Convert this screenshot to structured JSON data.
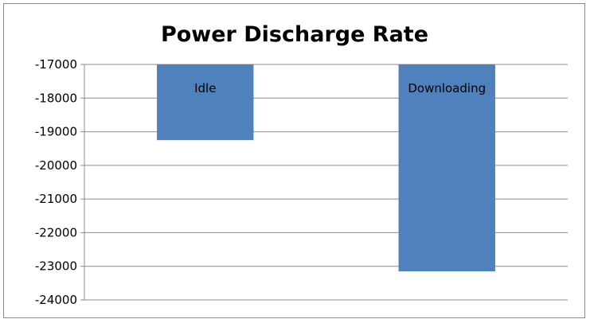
{
  "chart_data": {
    "type": "bar",
    "title": "Power Discharge Rate",
    "xlabel": "",
    "ylabel": "",
    "categories": [
      "Idle",
      "Downloading"
    ],
    "values": [
      -19250,
      -23150
    ],
    "ylim": [
      -24000,
      -17000
    ],
    "yticks": [
      "-17000",
      "-18000",
      "-19000",
      "-20000",
      "-21000",
      "-22000",
      "-23000",
      "-24000"
    ],
    "grid": true,
    "legend": "none",
    "bar_color": "#4F81BD"
  }
}
